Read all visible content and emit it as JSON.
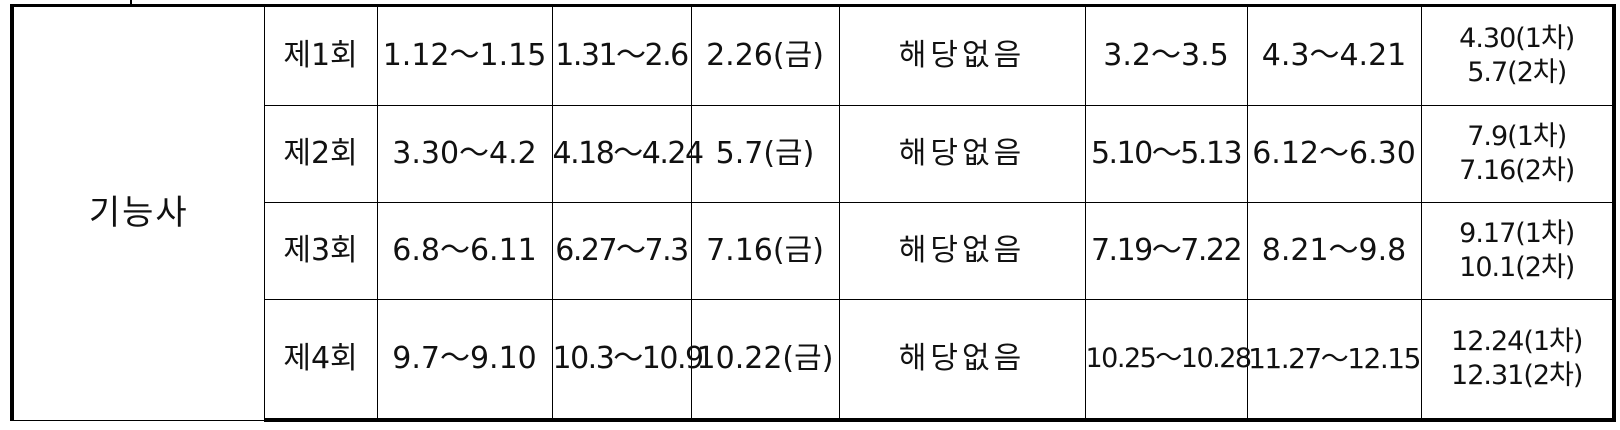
{
  "table": {
    "category": "기능사",
    "rows": [
      {
        "round": "제1회",
        "col1": "1.12～1.15",
        "col2": "1.31～2.6",
        "col3": "2.26(금)",
        "col4": "해당없음",
        "col5": "3.2～3.5",
        "col6": "4.3～4.21",
        "col7_line1": "4.30(1차)",
        "col7_line2": "5.7(2차)"
      },
      {
        "round": "제2회",
        "col1": "3.30～4.2",
        "col2": "4.18～4.24",
        "col3": "5.7(금)",
        "col4": "해당없음",
        "col5": "5.10～5.13",
        "col6": "6.12～6.30",
        "col7_line1": "7.9(1차)",
        "col7_line2": "7.16(2차)"
      },
      {
        "round": "제3회",
        "col1": "6.8～6.11",
        "col2": "6.27～7.3",
        "col3": "7.16(금)",
        "col4": "해당없음",
        "col5": "7.19～7.22",
        "col6": "8.21～9.8",
        "col7_line1": "9.17(1차)",
        "col7_line2": "10.1(2차)"
      },
      {
        "round": "제4회",
        "col1": "9.7～9.10",
        "col2": "10.3～10.9",
        "col3": "10.22(금)",
        "col4": "해당없음",
        "col5": "10.25～10.28",
        "col6": "11.27～12.15",
        "col7_line1": "12.24(1차)",
        "col7_line2": "12.31(2차)"
      }
    ]
  }
}
